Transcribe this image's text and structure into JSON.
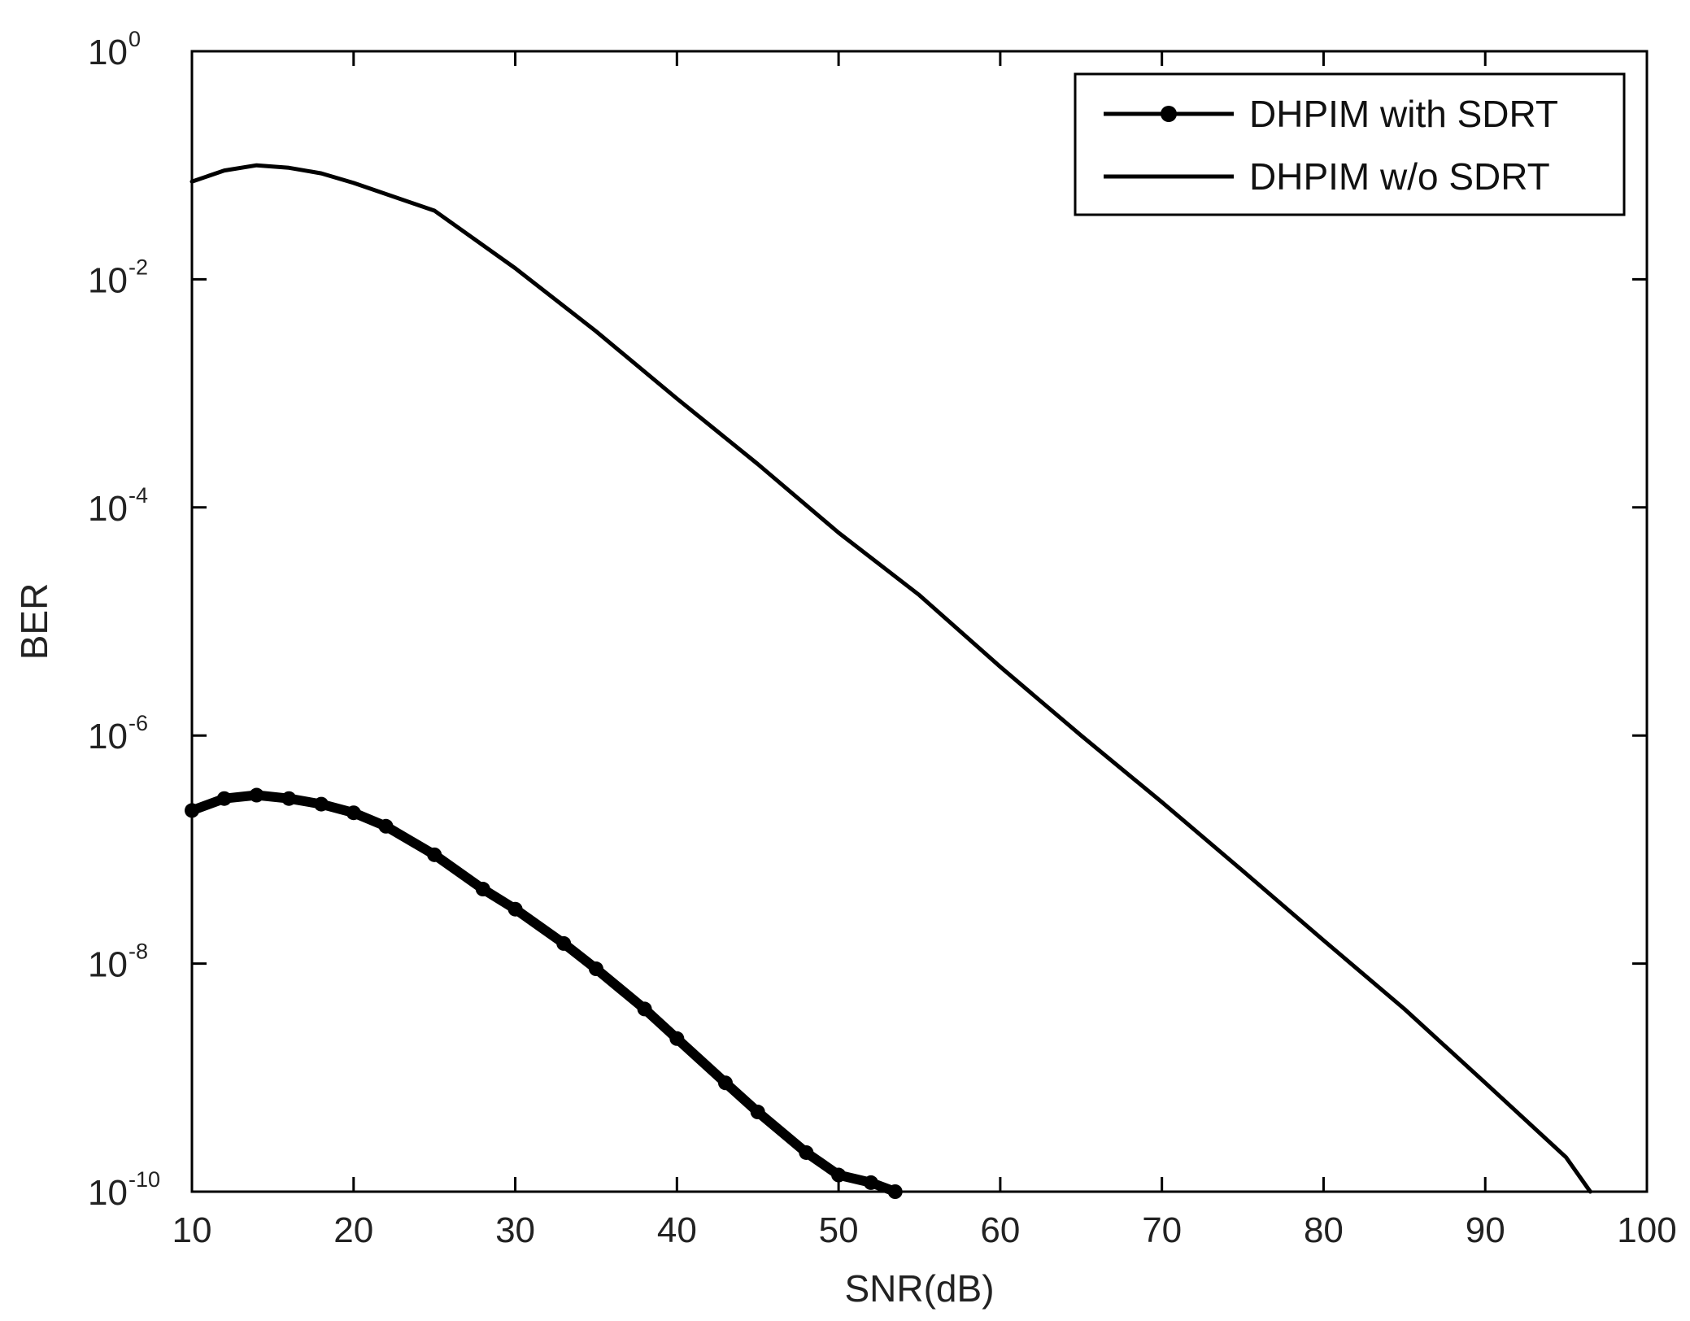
{
  "chart_data": {
    "type": "line",
    "title": "",
    "xlabel": "SNR(dB)",
    "ylabel": "BER",
    "xscale": "linear",
    "yscale": "log",
    "xlim": [
      10,
      100
    ],
    "ylim": [
      1e-10,
      1
    ],
    "xticks": [
      10,
      20,
      30,
      40,
      50,
      60,
      70,
      80,
      90,
      100
    ],
    "yticks": [
      {
        "base": "10",
        "exp": "0",
        "value": 1
      },
      {
        "base": "10",
        "exp": "-2",
        "value": 0.01
      },
      {
        "base": "10",
        "exp": "-4",
        "value": 0.0001
      },
      {
        "base": "10",
        "exp": "-6",
        "value": 1e-06
      },
      {
        "base": "10",
        "exp": "-8",
        "value": 1e-08
      },
      {
        "base": "10",
        "exp": "-10",
        "value": 1e-10
      }
    ],
    "grid": false,
    "legend_position": "top-right",
    "series": [
      {
        "name": "DHPIM with SDRT",
        "marker": "dot",
        "color": "#000000",
        "x": [
          10,
          12,
          14,
          16,
          18,
          20,
          22,
          25,
          28,
          30,
          33,
          35,
          38,
          40,
          43,
          45,
          48,
          50,
          52,
          53.5
        ],
        "y": [
          2.2e-07,
          2.8e-07,
          3e-07,
          2.8e-07,
          2.5e-07,
          2.1e-07,
          1.6e-07,
          9e-08,
          4.5e-08,
          3e-08,
          1.5e-08,
          9e-09,
          4e-09,
          2.2e-09,
          9e-10,
          5e-10,
          2.2e-10,
          1.4e-10,
          1.2e-10,
          1e-10
        ]
      },
      {
        "name": "DHPIM w/o SDRT",
        "marker": "none",
        "color": "#000000",
        "x": [
          10,
          12,
          14,
          16,
          18,
          20,
          25,
          30,
          35,
          40,
          45,
          50,
          55,
          60,
          65,
          70,
          75,
          80,
          85,
          90,
          95,
          96.5
        ],
        "y": [
          0.072,
          0.09,
          0.1,
          0.095,
          0.085,
          0.07,
          0.04,
          0.0125,
          0.0035,
          0.0009,
          0.00024,
          6e-05,
          1.7e-05,
          4e-06,
          1e-06,
          2.6e-07,
          6.5e-08,
          1.6e-08,
          4e-09,
          9e-10,
          2e-10,
          1e-10
        ]
      }
    ]
  }
}
